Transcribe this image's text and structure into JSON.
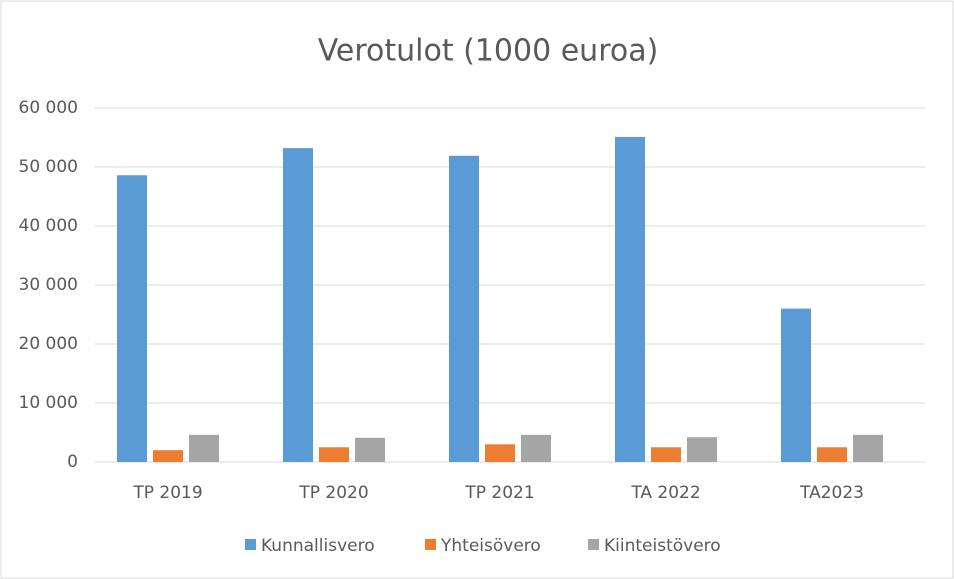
{
  "chart_data": {
    "type": "bar",
    "title": "Verotulot (1000 euroa)",
    "categories": [
      "TP 2019",
      "TP 2020",
      "TP 2021",
      "TA 2022",
      "TA2023"
    ],
    "series": [
      {
        "name": "Kunnallisvero",
        "color": "#5b9bd5",
        "values": [
          48600,
          53200,
          51900,
          55100,
          26000
        ]
      },
      {
        "name": "Yhteisövero",
        "color": "#ed7d31",
        "values": [
          2000,
          2500,
          3000,
          2500,
          2500
        ]
      },
      {
        "name": "Kiinteistövero",
        "color": "#a5a5a5",
        "values": [
          4600,
          4100,
          4600,
          4200,
          4600
        ]
      }
    ],
    "ylim": [
      0,
      60000
    ],
    "yticks": [
      0,
      {
        "value": 10000,
        "label": "10 000"
      },
      {
        "value": 20000,
        "label": "20 000"
      },
      {
        "value": 30000,
        "label": "30 000"
      },
      {
        "value": 40000,
        "label": "40 000"
      },
      {
        "value": 50000,
        "label": "50 000"
      },
      {
        "value": 60000,
        "label": "60 000"
      }
    ],
    "grid": true,
    "legend": "bottom"
  }
}
